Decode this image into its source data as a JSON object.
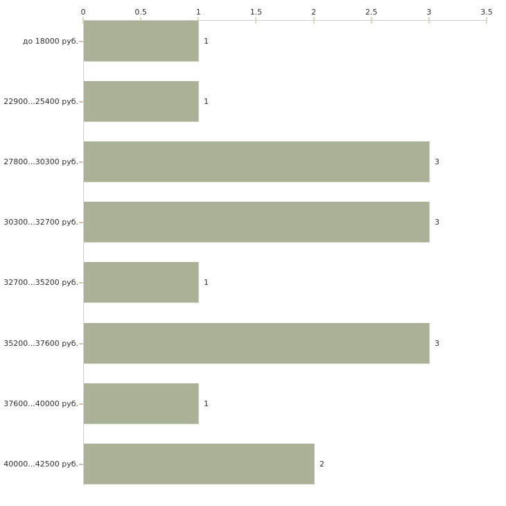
{
  "chart_data": {
    "type": "bar",
    "orientation": "horizontal",
    "title": "",
    "xlabel": "",
    "ylabel": "",
    "categories": [
      "до 18000 руб.",
      "22900...25400 руб.",
      "27800...30300 руб.",
      "30300...32700 руб.",
      "32700...35200 руб.",
      "35200...37600 руб.",
      "37600...40000 руб.",
      "40000...42500 руб."
    ],
    "values": [
      1,
      1,
      3,
      3,
      1,
      3,
      1,
      2
    ],
    "value_labels": [
      "1",
      "1",
      "3",
      "3",
      "1",
      "3",
      "1",
      "2"
    ],
    "x_ticks": [
      0,
      0.5,
      1,
      1.5,
      2,
      2.5,
      3,
      3.5
    ],
    "x_tick_labels": [
      "0",
      "0.5",
      "1",
      "1.5",
      "2",
      "2.5",
      "3",
      "3.5"
    ],
    "xlim": [
      0,
      3.5
    ],
    "axis_position": "top",
    "grid": false,
    "legend": null,
    "colors": {
      "bar": "#aab197",
      "axis_line": "#c7c7c7",
      "x_tick_mark": "#d5d7b9",
      "category_tick_mark": "#dbbfae",
      "text": "#303030",
      "background": "#ffffff"
    }
  }
}
